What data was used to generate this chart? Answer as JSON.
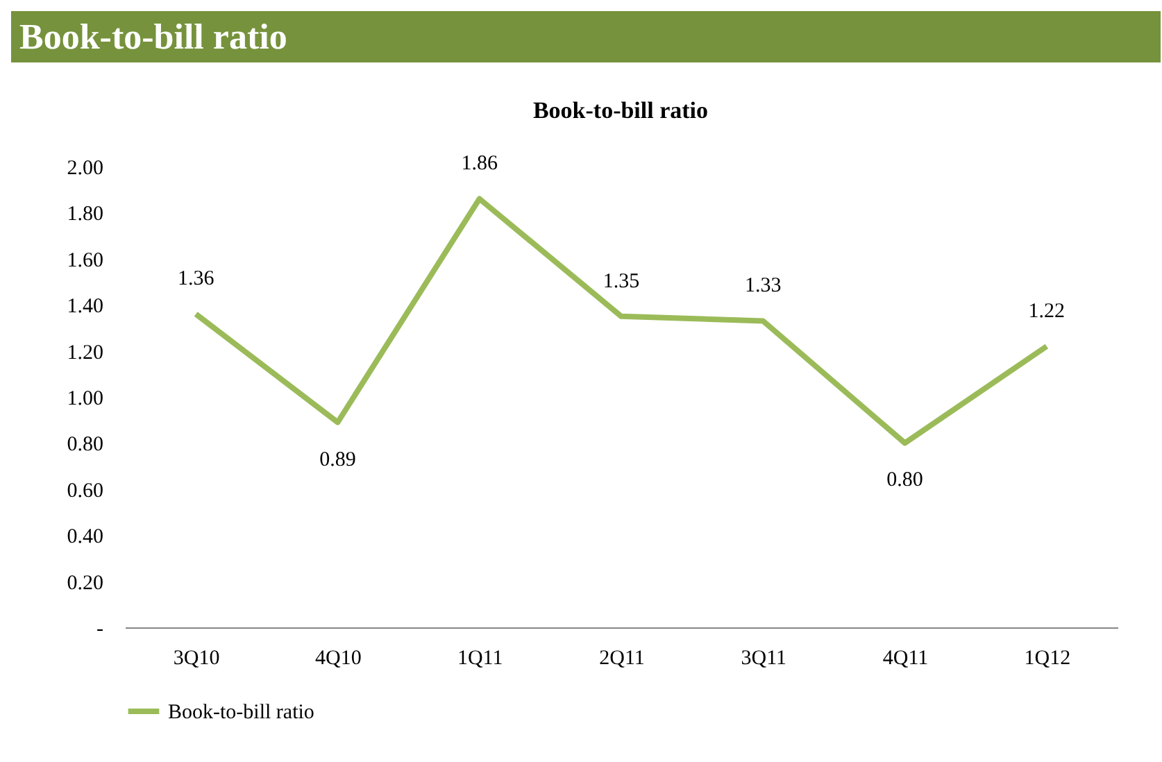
{
  "chart_data": {
    "type": "line",
    "title": "Book-to-bill ratio",
    "subtitle": "Book-to-bill ratio",
    "categories": [
      "3Q10",
      "4Q10",
      "1Q11",
      "2Q11",
      "3Q11",
      "4Q11",
      "1Q12"
    ],
    "series": [
      {
        "name": "Book-to-bill ratio",
        "color": "#9bbb59",
        "values": [
          1.36,
          0.89,
          1.86,
          1.35,
          1.33,
          0.8,
          1.22
        ],
        "value_labels": [
          "1.36",
          "0.89",
          "1.86",
          "1.35",
          "1.33",
          "0.80",
          "1.22"
        ]
      }
    ],
    "ylim": [
      0,
      2.0
    ],
    "yticks": [
      {
        "value": 0,
        "label": "-"
      },
      {
        "value": 0.2,
        "label": "0.20"
      },
      {
        "value": 0.4,
        "label": "0.40"
      },
      {
        "value": 0.6,
        "label": "0.60"
      },
      {
        "value": 0.8,
        "label": "0.80"
      },
      {
        "value": 1.0,
        "label": "1.00"
      },
      {
        "value": 1.2,
        "label": "1.20"
      },
      {
        "value": 1.4,
        "label": "1.40"
      },
      {
        "value": 1.6,
        "label": "1.60"
      },
      {
        "value": 1.8,
        "label": "1.80"
      },
      {
        "value": 2.0,
        "label": "2.00"
      }
    ],
    "grid": false,
    "legend": "bottom",
    "marker": "none",
    "line_style": "solid"
  }
}
